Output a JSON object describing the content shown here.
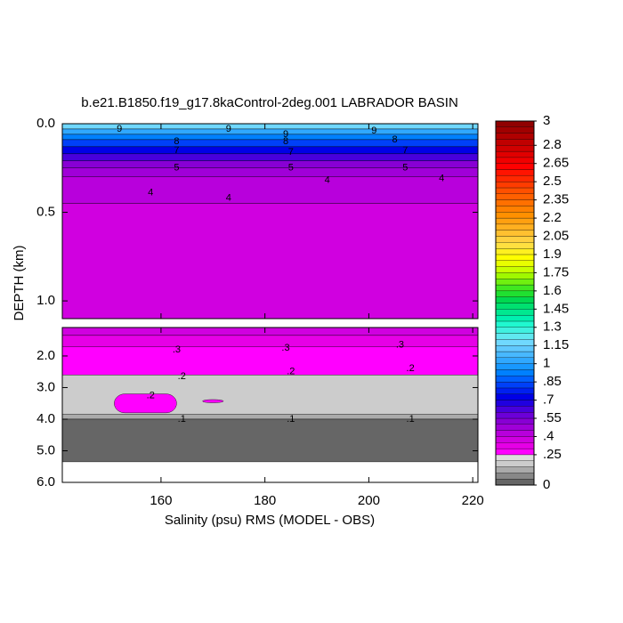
{
  "chart_data": {
    "type": "contour",
    "title": "b.e21.B1850.f19_g17.8kaControl-2deg.001 LABRADOR BASIN",
    "xlabel": "Salinity (psu) RMS (MODEL - OBS)",
    "ylabel": "DEPTH (km)",
    "xlim": [
      141,
      221
    ],
    "xticks": [
      160,
      180,
      200,
      220
    ],
    "panels": [
      {
        "ylim": [
          0,
          1.1
        ],
        "yticks": [
          {
            "value": 0,
            "label": "0.0"
          },
          {
            "value": 0.5,
            "label": "0.5"
          },
          {
            "value": 1,
            "label": "1.0"
          }
        ],
        "layers": [
          {
            "top": 0,
            "bottom": 0.03,
            "value": 1.15
          },
          {
            "top": 0.03,
            "bottom": 0.06,
            "value": 1.0
          },
          {
            "top": 0.06,
            "bottom": 0.09,
            "value": 0.9
          },
          {
            "top": 0.09,
            "bottom": 0.13,
            "value": 0.8
          },
          {
            "top": 0.13,
            "bottom": 0.17,
            "value": 0.7
          },
          {
            "top": 0.17,
            "bottom": 0.21,
            "value": 0.6
          },
          {
            "top": 0.21,
            "bottom": 0.25,
            "value": 0.5
          },
          {
            "top": 0.25,
            "bottom": 0.3,
            "value": 0.45
          },
          {
            "top": 0.3,
            "bottom": 0.45,
            "value": 0.4
          },
          {
            "top": 0.45,
            "bottom": 1.1,
            "value": 0.35
          }
        ],
        "annotations": [
          {
            "text": "9",
            "x": 152,
            "y": 0.03
          },
          {
            "text": "9",
            "x": 173,
            "y": 0.03
          },
          {
            "text": "9",
            "x": 184,
            "y": 0.06
          },
          {
            "text": "9",
            "x": 201,
            "y": 0.04
          },
          {
            "text": "8",
            "x": 163,
            "y": 0.1
          },
          {
            "text": "8",
            "x": 184,
            "y": 0.1
          },
          {
            "text": "8",
            "x": 205,
            "y": 0.09
          },
          {
            "text": "7",
            "x": 163,
            "y": 0.15
          },
          {
            "text": "7",
            "x": 185,
            "y": 0.16
          },
          {
            "text": "7",
            "x": 207,
            "y": 0.15
          },
          {
            "text": "5",
            "x": 163,
            "y": 0.25
          },
          {
            "text": "5",
            "x": 185,
            "y": 0.25
          },
          {
            "text": "5",
            "x": 207,
            "y": 0.25
          },
          {
            "text": "4",
            "x": 158,
            "y": 0.39
          },
          {
            "text": "4",
            "x": 173,
            "y": 0.42
          },
          {
            "text": "4",
            "x": 192,
            "y": 0.32
          },
          {
            "text": "4",
            "x": 214,
            "y": 0.31
          }
        ]
      },
      {
        "ylim": [
          1.1,
          6
        ],
        "yticks": [
          {
            "value": 2,
            "label": "2.0"
          },
          {
            "value": 3,
            "label": "3.0"
          },
          {
            "value": 4,
            "label": "4.0"
          },
          {
            "value": 5,
            "label": "5.0"
          },
          {
            "value": 6,
            "label": "6.0"
          }
        ],
        "layers": [
          {
            "top": 1.1,
            "bottom": 1.35,
            "value": 0.35
          },
          {
            "top": 1.35,
            "bottom": 1.7,
            "value": 0.3
          },
          {
            "top": 1.7,
            "bottom": 2.6,
            "value": 0.25
          },
          {
            "top": 2.6,
            "bottom": 3.85,
            "value": 0.15
          },
          {
            "top": 3.85,
            "bottom": 4.0,
            "value": 0.1
          },
          {
            "top": 4.0,
            "bottom": 5.35,
            "value": 0
          },
          {
            "top": 3.2,
            "bottom": 3.8,
            "value": 0.25,
            "x": [
              151,
              163
            ]
          },
          {
            "top": 3.38,
            "bottom": 3.48,
            "value": 0.25,
            "x": [
              168,
              172
            ]
          }
        ],
        "annotations": [
          {
            "text": ".3",
            "x": 163,
            "y": 1.8
          },
          {
            "text": ".3",
            "x": 184,
            "y": 1.75
          },
          {
            "text": ".3",
            "x": 206,
            "y": 1.65
          },
          {
            "text": ".2",
            "x": 164,
            "y": 2.65
          },
          {
            "text": ".2",
            "x": 185,
            "y": 2.5
          },
          {
            "text": ".2",
            "x": 208,
            "y": 2.4
          },
          {
            "text": ".2",
            "x": 158,
            "y": 3.25
          },
          {
            "text": ".1",
            "x": 164,
            "y": 4.0
          },
          {
            "text": ".1",
            "x": 185,
            "y": 4.0
          },
          {
            "text": ".1",
            "x": 208,
            "y": 4.0
          }
        ]
      }
    ],
    "colorbar": {
      "lim": [
        0,
        3
      ],
      "ticks": [
        3,
        2.8,
        2.65,
        2.5,
        2.35,
        2.2,
        2.05,
        1.9,
        1.75,
        1.6,
        1.45,
        1.3,
        1.15,
        1,
        {
          "value": 0.85,
          "label": ".85"
        },
        {
          "value": 0.7,
          "label": ".7"
        },
        {
          "value": 0.55,
          "label": ".55"
        },
        {
          "value": 0.4,
          "label": ".4"
        },
        {
          "value": 0.25,
          "label": ".25"
        },
        0
      ],
      "colors": [
        "#666666",
        "#888888",
        "#aaaaaa",
        "#cccccc",
        "#dddddd",
        "#ff00ff",
        "#e600e6",
        "#d000e0",
        "#b800dc",
        "#a000d8",
        "#8800d4",
        "#6c00d8",
        "#4800dc",
        "#2000e0",
        "#0000e6",
        "#0020f0",
        "#0040f8",
        "#0060ff",
        "#0080ff",
        "#1898ff",
        "#30a8ff",
        "#48b8ff",
        "#60c8ff",
        "#70d8ff",
        "#60e8f0",
        "#40f0e0",
        "#20f8d0",
        "#00f0b0",
        "#00e890",
        "#00e070",
        "#00d850",
        "#20e030",
        "#40e820",
        "#70f010",
        "#a0f800",
        "#c8ff00",
        "#e8ff00",
        "#ffff00",
        "#fff020",
        "#ffe040",
        "#ffd040",
        "#ffc030",
        "#ffb020",
        "#ffa010",
        "#ff9000",
        "#ff8000",
        "#ff7000",
        "#ff6000",
        "#ff5000",
        "#ff3c00",
        "#ff2800",
        "#ff1400",
        "#ff0000",
        "#f00000",
        "#e00000",
        "#d00000",
        "#c00000",
        "#b00000",
        "#a00000",
        "#900000"
      ]
    }
  }
}
